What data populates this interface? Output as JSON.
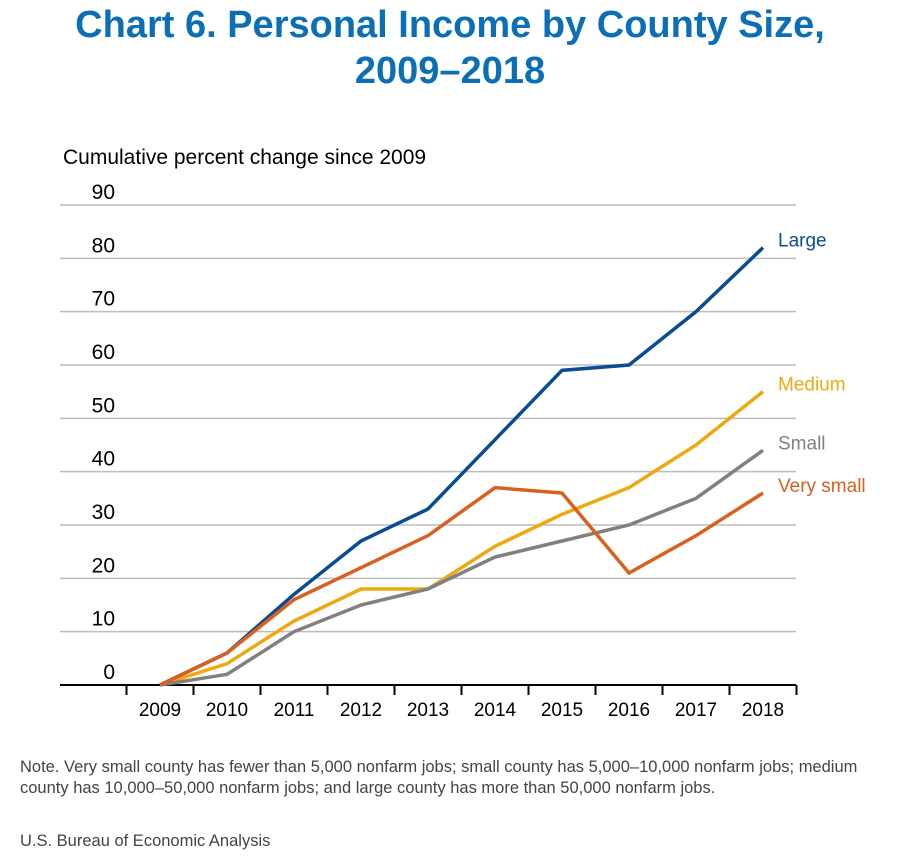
{
  "title_line1": "Chart 6. Personal Income by County Size,",
  "title_line2": "2009–2018",
  "note": "Note. Very small county has fewer than 5,000 nonfarm jobs; small county has 5,000–10,000 nonfarm jobs; medium county has 10,000–50,000 nonfarm jobs; and large county has more than 50,000 nonfarm jobs.",
  "source": "U.S. Bureau of Economic Analysis",
  "colors": {
    "title": "#0b6fb8",
    "grid": "#bdbdbd",
    "axis": "#000000"
  },
  "chart_data": {
    "type": "line",
    "title": "",
    "ylabel": "Cumulative percent change since 2009",
    "xlabel": "",
    "ylim": [
      0,
      90
    ],
    "yticks": [
      0,
      10,
      20,
      30,
      40,
      50,
      60,
      70,
      80,
      90
    ],
    "grid": true,
    "legend": "direct labels at line ends",
    "categories": [
      "2009",
      "2010",
      "2011",
      "2012",
      "2013",
      "2014",
      "2015",
      "2016",
      "2017",
      "2018"
    ],
    "series": [
      {
        "name": "Large",
        "color": "#0a4b96",
        "values": [
          0,
          6,
          17,
          27,
          33,
          46,
          59,
          60,
          70,
          82
        ]
      },
      {
        "name": "Medium",
        "color": "#f0a810",
        "values": [
          0,
          4,
          12,
          18,
          18,
          26,
          32,
          37,
          45,
          55
        ]
      },
      {
        "name": "Small",
        "color": "#808080",
        "values": [
          0,
          2,
          10,
          15,
          18,
          24,
          27,
          30,
          35,
          44
        ]
      },
      {
        "name": "Very small",
        "color": "#d9601e",
        "values": [
          0,
          6,
          16,
          22,
          28,
          37,
          36,
          21,
          28,
          36
        ]
      }
    ]
  }
}
